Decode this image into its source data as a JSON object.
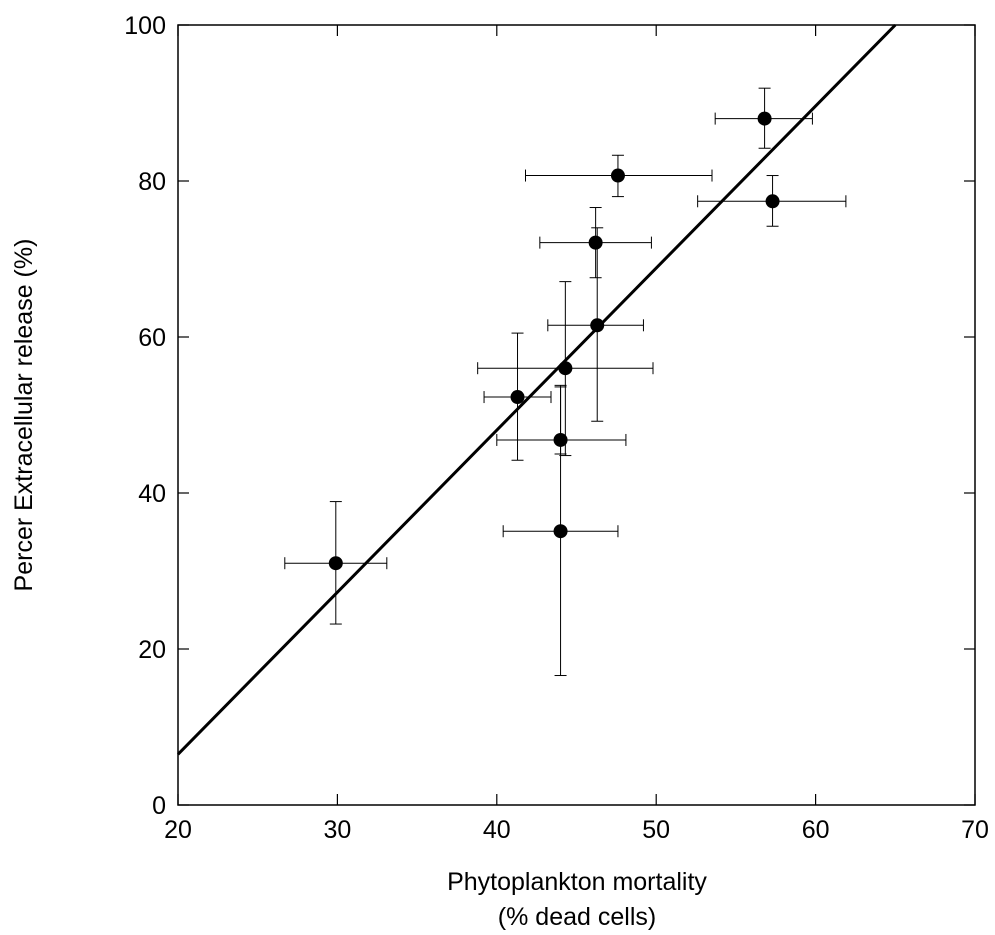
{
  "chart_data": {
    "type": "scatter",
    "title": "",
    "xlabel_line1": "Phytoplankton mortality",
    "xlabel_line2": "(% dead cells)",
    "ylabel": "Percer Extracellular release (%)",
    "xlim": [
      20,
      70
    ],
    "ylim": [
      0,
      100
    ],
    "x_ticks": [
      20,
      30,
      40,
      50,
      60,
      70
    ],
    "y_ticks": [
      0,
      20,
      40,
      60,
      80,
      100
    ],
    "grid": false,
    "points": [
      {
        "x": 29.9,
        "y": 31.0,
        "x_err": [
          26.7,
          33.1
        ],
        "y_err": [
          23.2,
          38.9
        ]
      },
      {
        "x": 41.3,
        "y": 52.3,
        "x_err": [
          39.2,
          43.4
        ],
        "y_err": [
          44.2,
          60.5
        ]
      },
      {
        "x": 44.3,
        "y": 56.0,
        "x_err": [
          38.8,
          49.8
        ],
        "y_err": [
          44.8,
          67.1
        ]
      },
      {
        "x": 44.0,
        "y": 46.8,
        "x_err": [
          40.0,
          48.1
        ],
        "y_err": [
          45.0,
          53.8
        ]
      },
      {
        "x": 44.0,
        "y": 35.1,
        "x_err": [
          40.4,
          47.6
        ],
        "y_err": [
          16.6,
          53.6
        ]
      },
      {
        "x": 46.3,
        "y": 61.5,
        "x_err": [
          43.2,
          49.2
        ],
        "y_err": [
          49.2,
          74.0
        ]
      },
      {
        "x": 46.2,
        "y": 72.1,
        "x_err": [
          42.7,
          49.7
        ],
        "y_err": [
          67.6,
          76.6
        ]
      },
      {
        "x": 47.6,
        "y": 80.7,
        "x_err": [
          41.8,
          53.5
        ],
        "y_err": [
          78.0,
          83.3
        ]
      },
      {
        "x": 56.8,
        "y": 88.0,
        "x_err": [
          53.7,
          59.8
        ],
        "y_err": [
          84.2,
          91.9
        ]
      },
      {
        "x": 57.3,
        "y": 77.4,
        "x_err": [
          52.6,
          61.9
        ],
        "y_err": [
          74.2,
          80.7
        ]
      }
    ],
    "regression_line": {
      "x": [
        20,
        65
      ],
      "y": [
        6.5,
        100
      ]
    }
  }
}
